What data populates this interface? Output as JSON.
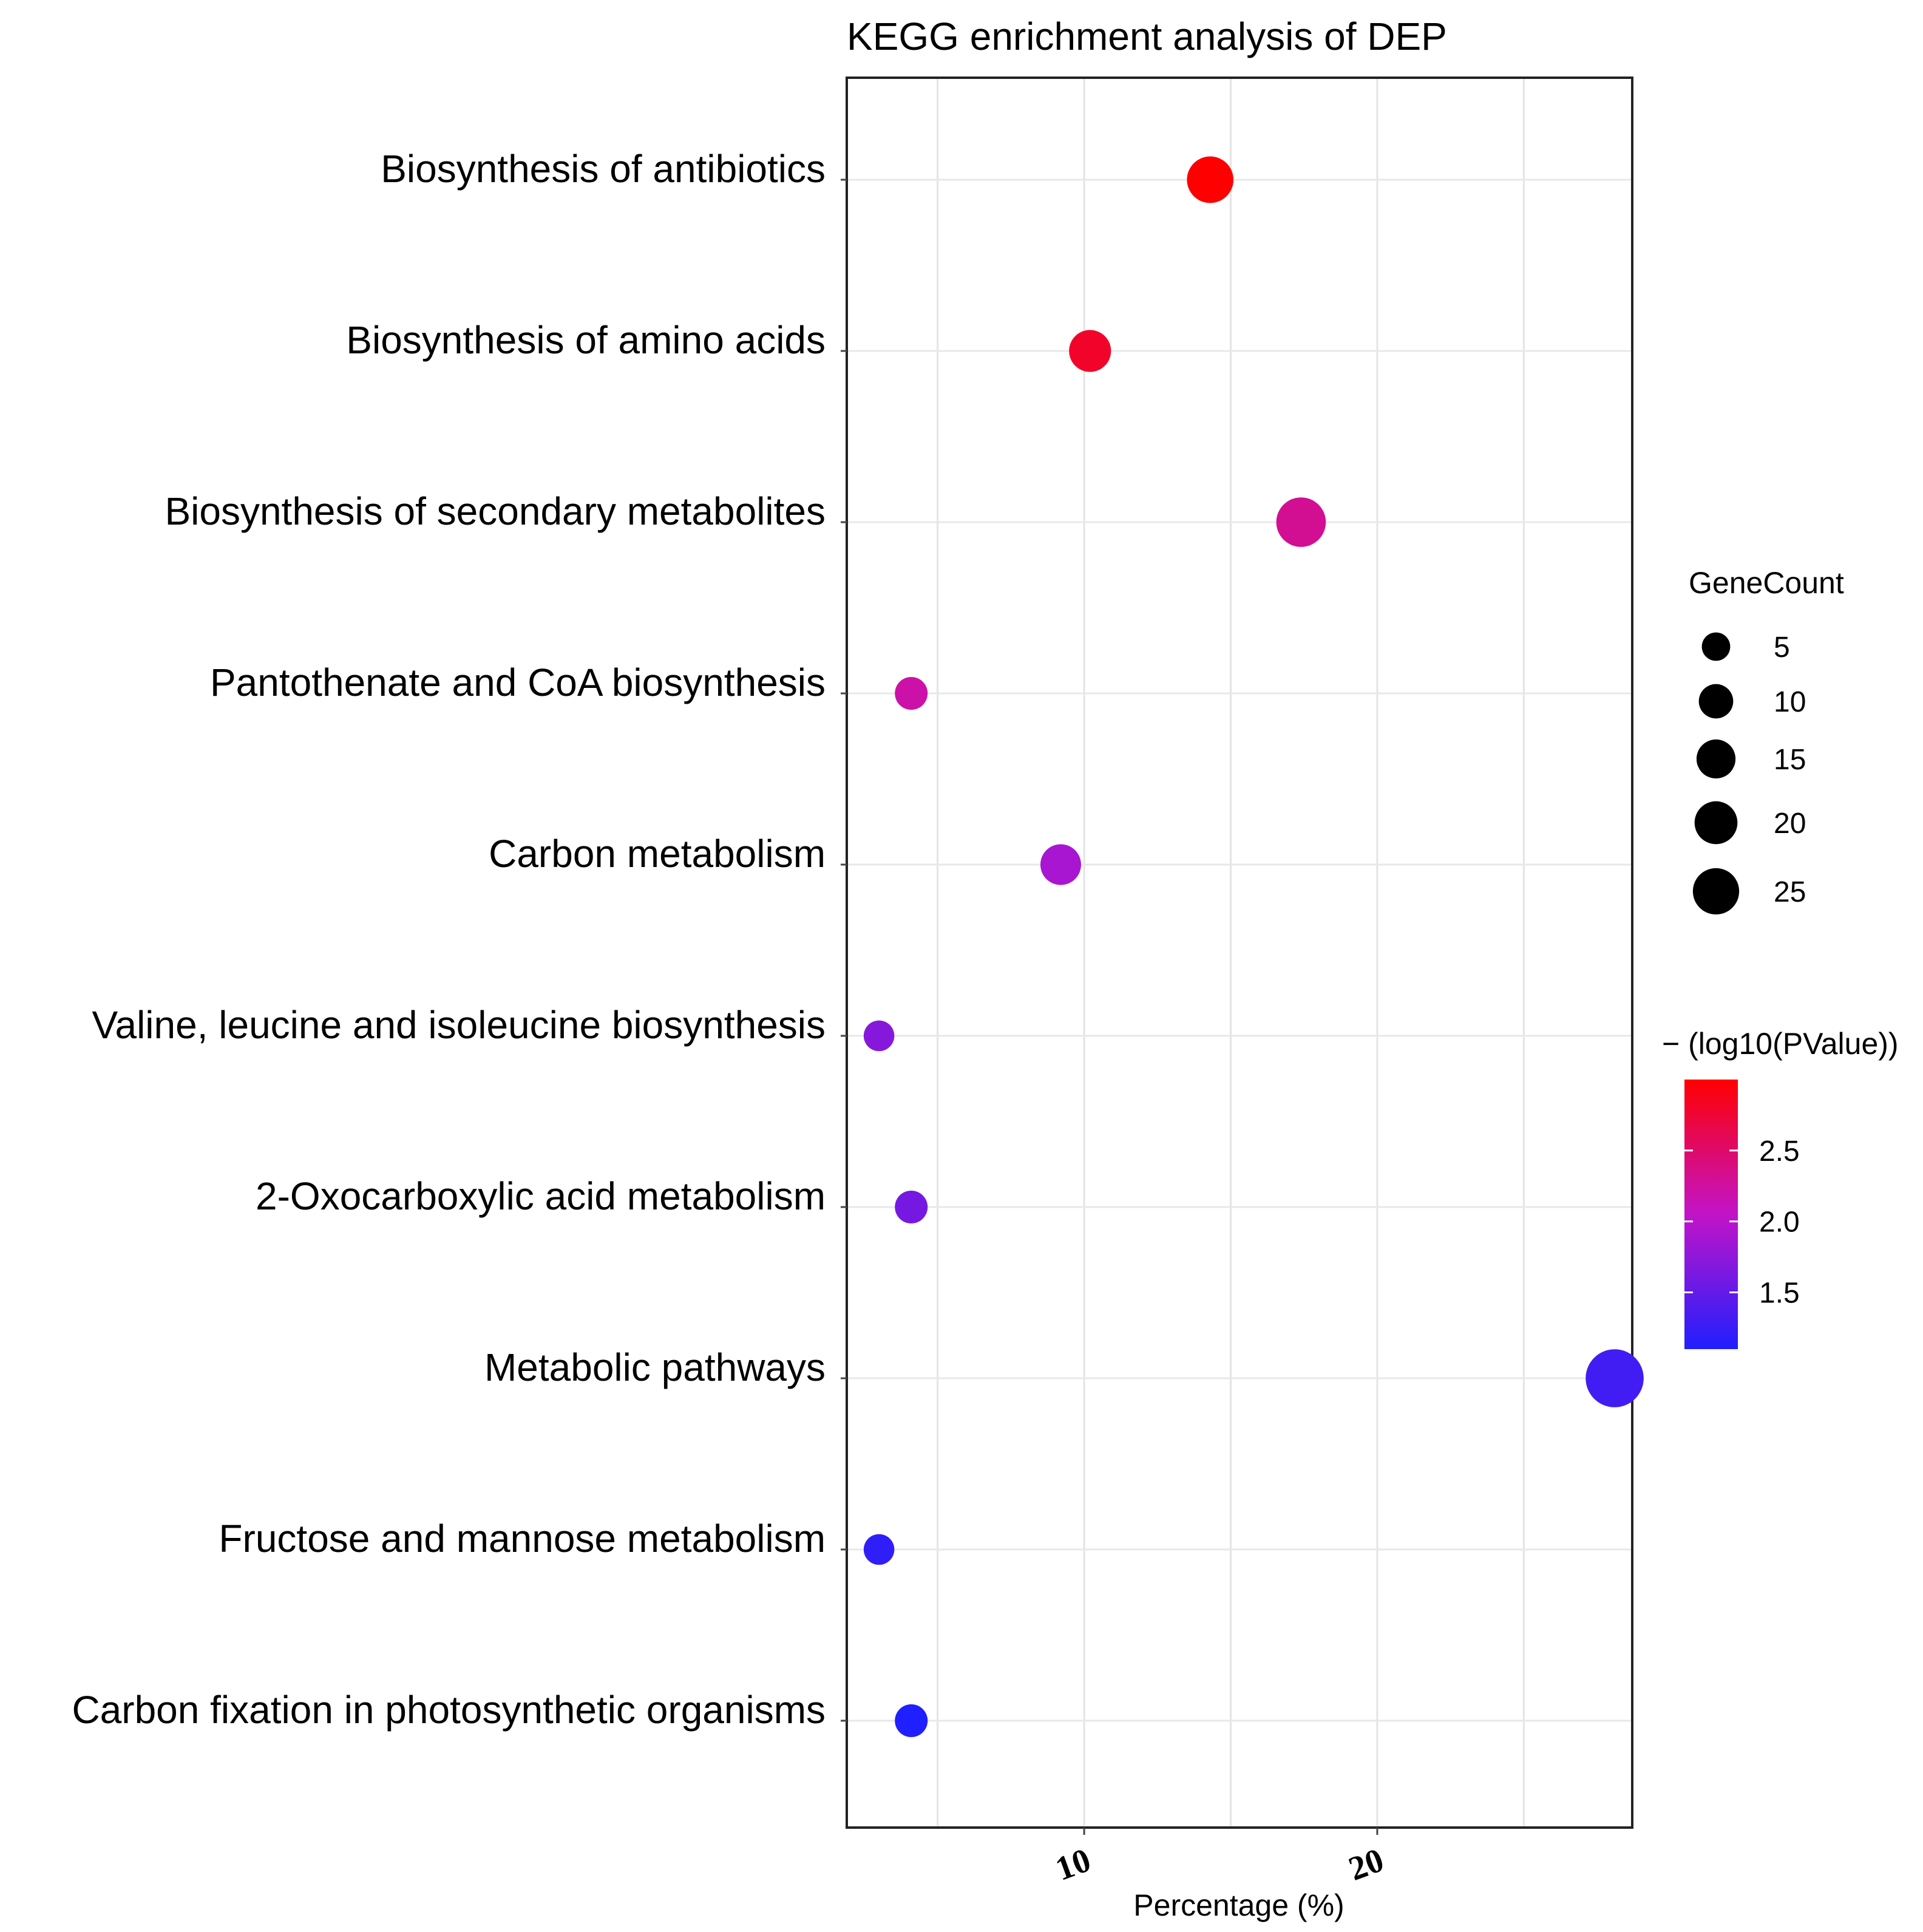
{
  "chart_data": {
    "type": "scatter",
    "title": "KEGG enrichment analysis of DEP",
    "xlabel": "Percentage (%)",
    "ylabel": "",
    "xlim": [
      1.9,
      28.7
    ],
    "x_ticks": [
      10,
      20
    ],
    "x_tick_labels": [
      "10",
      "20"
    ],
    "grid": true,
    "categories": [
      "Biosynthesis of antibiotics",
      "Biosynthesis of amino acids",
      "Biosynthesis of secondary metabolites",
      "Pantothenate and CoA biosynthesis",
      "Carbon metabolism",
      "Valine, leucine and isoleucine biosynthesis",
      "2-Oxocarboxylic acid metabolism",
      "Metabolic pathways",
      "Fructose and mannose metabolism",
      "Carbon fixation in photosynthetic organisms"
    ],
    "points": [
      {
        "category": "Biosynthesis of antibiotics",
        "x": 14.3,
        "gene_count": 14,
        "neg_log10_p": 3.0
      },
      {
        "category": "Biosynthesis of amino acids",
        "x": 10.2,
        "gene_count": 10,
        "neg_log10_p": 2.8
      },
      {
        "category": "Biosynthesis of secondary metabolites",
        "x": 17.4,
        "gene_count": 17,
        "neg_log10_p": 2.3
      },
      {
        "category": "Pantothenate and CoA biosynthesis",
        "x": 4.1,
        "gene_count": 4,
        "neg_log10_p": 2.2
      },
      {
        "category": "Carbon metabolism",
        "x": 9.2,
        "gene_count": 9,
        "neg_log10_p": 1.9
      },
      {
        "category": "Valine, leucine and isoleucine biosynthesis",
        "x": 3.0,
        "gene_count": 3,
        "neg_log10_p": 1.7
      },
      {
        "category": "2-Oxocarboxylic acid metabolism",
        "x": 4.1,
        "gene_count": 4,
        "neg_log10_p": 1.6
      },
      {
        "category": "Metabolic pathways",
        "x": 28.1,
        "gene_count": 27,
        "neg_log10_p": 1.3
      },
      {
        "category": "Fructose and mannose metabolism",
        "x": 3.0,
        "gene_count": 3,
        "neg_log10_p": 1.2
      },
      {
        "category": "Carbon fixation in photosynthetic organisms",
        "x": 4.1,
        "gene_count": 4,
        "neg_log10_p": 1.1
      }
    ],
    "size_legend": {
      "title": "GeneCount",
      "values": [
        5,
        10,
        15,
        20,
        25
      ],
      "labels": [
        "5",
        "10",
        "15",
        "20",
        "25"
      ]
    },
    "color_legend": {
      "title": "− (log10(PValue))",
      "range": [
        1.1,
        3.0
      ],
      "ticks": [
        1.5,
        2.0,
        2.5
      ],
      "tick_labels": [
        "1.5",
        "2.0",
        "2.5"
      ],
      "low_color": "#1f1fff",
      "mid_color": "#c214c8",
      "high_color": "#ff0000"
    },
    "legend_position": "right"
  }
}
